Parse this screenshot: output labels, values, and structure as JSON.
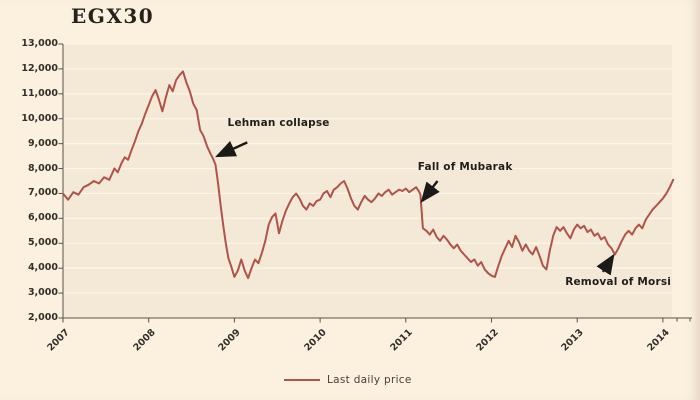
{
  "title": "EGX30",
  "legend": {
    "label": "Last daily price"
  },
  "chart_data": {
    "type": "line",
    "title": "EGX30",
    "xlabel": "",
    "ylabel": "",
    "xlim": [
      2007,
      2014.106
    ],
    "ylim": [
      2000,
      13000
    ],
    "grid": "horizontal",
    "legend_position": "bottom-center",
    "line_color": "#b0544a",
    "background_color": "#fcf0df",
    "plot_background_color": "#f4e9d7",
    "y_ticks": [
      {
        "value": 13000,
        "label": "13,000"
      },
      {
        "value": 12000,
        "label": "12,000"
      },
      {
        "value": 11000,
        "label": "11,000"
      },
      {
        "value": 10000,
        "label": "10,000"
      },
      {
        "value": 9000,
        "label": "9,000"
      },
      {
        "value": 8000,
        "label": "8,000"
      },
      {
        "value": 7000,
        "label": "7,000"
      },
      {
        "value": 6000,
        "label": "6,000"
      },
      {
        "value": 5000,
        "label": "5,000"
      },
      {
        "value": 4000,
        "label": "4,000"
      },
      {
        "value": 3000,
        "label": "3,000"
      },
      {
        "value": 2000,
        "label": "2,000"
      }
    ],
    "x_ticks": [
      {
        "value": 2007,
        "label": "2007"
      },
      {
        "value": 2008,
        "label": "2008"
      },
      {
        "value": 2009,
        "label": "2009"
      },
      {
        "value": 2010,
        "label": "2010"
      },
      {
        "value": 2011,
        "label": "2011"
      },
      {
        "value": 2012,
        "label": "2012"
      },
      {
        "value": 2013,
        "label": "2013"
      },
      {
        "value": 2014,
        "label": "2014"
      }
    ],
    "annotations": [
      {
        "label": "Lehman collapse",
        "tip": [
          2008.8,
          8500
        ],
        "tail": [
          2009.15,
          9050
        ],
        "text_pos": [
          2008.92,
          10050
        ]
      },
      {
        "label": "Fall of Mubarak",
        "tip": [
          2011.19,
          6700
        ],
        "tail": [
          2011.37,
          7500
        ],
        "text_pos": [
          2011.14,
          8300
        ]
      },
      {
        "label": "Removal of Morsi",
        "tip": [
          2013.42,
          4500
        ],
        "tail": [
          2013.3,
          3850
        ],
        "text_pos": [
          2012.86,
          3700
        ]
      }
    ],
    "series": [
      {
        "name": "Last daily price",
        "points": [
          [
            2007.0,
            7000
          ],
          [
            2007.06,
            6750
          ],
          [
            2007.12,
            7050
          ],
          [
            2007.18,
            6950
          ],
          [
            2007.24,
            7250
          ],
          [
            2007.3,
            7350
          ],
          [
            2007.36,
            7500
          ],
          [
            2007.42,
            7400
          ],
          [
            2007.48,
            7650
          ],
          [
            2007.54,
            7550
          ],
          [
            2007.6,
            8000
          ],
          [
            2007.64,
            7850
          ],
          [
            2007.68,
            8200
          ],
          [
            2007.72,
            8450
          ],
          [
            2007.76,
            8350
          ],
          [
            2007.8,
            8750
          ],
          [
            2007.84,
            9100
          ],
          [
            2007.88,
            9500
          ],
          [
            2007.92,
            9800
          ],
          [
            2007.96,
            10200
          ],
          [
            2008.0,
            10550
          ],
          [
            2008.04,
            10900
          ],
          [
            2008.08,
            11150
          ],
          [
            2008.12,
            10750
          ],
          [
            2008.16,
            10300
          ],
          [
            2008.2,
            10850
          ],
          [
            2008.24,
            11350
          ],
          [
            2008.28,
            11100
          ],
          [
            2008.32,
            11550
          ],
          [
            2008.36,
            11750
          ],
          [
            2008.4,
            11900
          ],
          [
            2008.44,
            11450
          ],
          [
            2008.48,
            11100
          ],
          [
            2008.52,
            10600
          ],
          [
            2008.56,
            10350
          ],
          [
            2008.6,
            9550
          ],
          [
            2008.64,
            9300
          ],
          [
            2008.68,
            8900
          ],
          [
            2008.72,
            8600
          ],
          [
            2008.75,
            8400
          ],
          [
            2008.78,
            8150
          ],
          [
            2008.81,
            7400
          ],
          [
            2008.84,
            6500
          ],
          [
            2008.87,
            5700
          ],
          [
            2008.9,
            5000
          ],
          [
            2008.93,
            4400
          ],
          [
            2008.96,
            4100
          ],
          [
            2009.0,
            3650
          ],
          [
            2009.04,
            3900
          ],
          [
            2009.08,
            4350
          ],
          [
            2009.12,
            3900
          ],
          [
            2009.16,
            3600
          ],
          [
            2009.2,
            4000
          ],
          [
            2009.24,
            4350
          ],
          [
            2009.28,
            4200
          ],
          [
            2009.32,
            4600
          ],
          [
            2009.36,
            5100
          ],
          [
            2009.4,
            5750
          ],
          [
            2009.44,
            6050
          ],
          [
            2009.48,
            6200
          ],
          [
            2009.52,
            5400
          ],
          [
            2009.56,
            5900
          ],
          [
            2009.6,
            6300
          ],
          [
            2009.64,
            6600
          ],
          [
            2009.68,
            6850
          ],
          [
            2009.72,
            7000
          ],
          [
            2009.76,
            6800
          ],
          [
            2009.8,
            6500
          ],
          [
            2009.84,
            6350
          ],
          [
            2009.88,
            6600
          ],
          [
            2009.92,
            6500
          ],
          [
            2009.96,
            6700
          ],
          [
            2010.0,
            6750
          ],
          [
            2010.04,
            7000
          ],
          [
            2010.08,
            7100
          ],
          [
            2010.12,
            6850
          ],
          [
            2010.16,
            7150
          ],
          [
            2010.2,
            7250
          ],
          [
            2010.24,
            7400
          ],
          [
            2010.28,
            7500
          ],
          [
            2010.32,
            7200
          ],
          [
            2010.36,
            6800
          ],
          [
            2010.4,
            6500
          ],
          [
            2010.44,
            6350
          ],
          [
            2010.48,
            6650
          ],
          [
            2010.52,
            6900
          ],
          [
            2010.56,
            6750
          ],
          [
            2010.6,
            6650
          ],
          [
            2010.64,
            6800
          ],
          [
            2010.68,
            7000
          ],
          [
            2010.72,
            6900
          ],
          [
            2010.76,
            7050
          ],
          [
            2010.8,
            7150
          ],
          [
            2010.84,
            6950
          ],
          [
            2010.88,
            7050
          ],
          [
            2010.92,
            7150
          ],
          [
            2010.96,
            7100
          ],
          [
            2011.0,
            7200
          ],
          [
            2011.04,
            7050
          ],
          [
            2011.08,
            7150
          ],
          [
            2011.12,
            7250
          ],
          [
            2011.15,
            7100
          ],
          [
            2011.17,
            6950
          ],
          [
            2011.2,
            5600
          ],
          [
            2011.24,
            5500
          ],
          [
            2011.28,
            5350
          ],
          [
            2011.32,
            5550
          ],
          [
            2011.36,
            5250
          ],
          [
            2011.4,
            5100
          ],
          [
            2011.44,
            5300
          ],
          [
            2011.48,
            5150
          ],
          [
            2011.52,
            4950
          ],
          [
            2011.56,
            4800
          ],
          [
            2011.6,
            4950
          ],
          [
            2011.64,
            4700
          ],
          [
            2011.68,
            4550
          ],
          [
            2011.72,
            4400
          ],
          [
            2011.76,
            4250
          ],
          [
            2011.8,
            4350
          ],
          [
            2011.84,
            4100
          ],
          [
            2011.88,
            4250
          ],
          [
            2011.92,
            3950
          ],
          [
            2011.96,
            3800
          ],
          [
            2012.0,
            3700
          ],
          [
            2012.04,
            3650
          ],
          [
            2012.08,
            4100
          ],
          [
            2012.12,
            4500
          ],
          [
            2012.16,
            4800
          ],
          [
            2012.2,
            5100
          ],
          [
            2012.24,
            4850
          ],
          [
            2012.28,
            5300
          ],
          [
            2012.32,
            5050
          ],
          [
            2012.36,
            4700
          ],
          [
            2012.4,
            4950
          ],
          [
            2012.44,
            4700
          ],
          [
            2012.48,
            4550
          ],
          [
            2012.52,
            4850
          ],
          [
            2012.56,
            4500
          ],
          [
            2012.6,
            4100
          ],
          [
            2012.64,
            3950
          ],
          [
            2012.68,
            4700
          ],
          [
            2012.72,
            5300
          ],
          [
            2012.76,
            5650
          ],
          [
            2012.8,
            5500
          ],
          [
            2012.84,
            5650
          ],
          [
            2012.88,
            5400
          ],
          [
            2012.92,
            5200
          ],
          [
            2012.96,
            5550
          ],
          [
            2013.0,
            5750
          ],
          [
            2013.04,
            5600
          ],
          [
            2013.08,
            5700
          ],
          [
            2013.12,
            5450
          ],
          [
            2013.16,
            5550
          ],
          [
            2013.2,
            5300
          ],
          [
            2013.24,
            5400
          ],
          [
            2013.28,
            5150
          ],
          [
            2013.32,
            5250
          ],
          [
            2013.36,
            4950
          ],
          [
            2013.4,
            4800
          ],
          [
            2013.44,
            4550
          ],
          [
            2013.48,
            4800
          ],
          [
            2013.52,
            5100
          ],
          [
            2013.56,
            5350
          ],
          [
            2013.6,
            5500
          ],
          [
            2013.64,
            5350
          ],
          [
            2013.68,
            5600
          ],
          [
            2013.72,
            5750
          ],
          [
            2013.76,
            5600
          ],
          [
            2013.8,
            5950
          ],
          [
            2013.84,
            6150
          ],
          [
            2013.88,
            6350
          ],
          [
            2013.92,
            6500
          ],
          [
            2013.96,
            6650
          ],
          [
            2014.0,
            6800
          ],
          [
            2014.04,
            7000
          ],
          [
            2014.08,
            7250
          ],
          [
            2014.12,
            7550
          ]
        ]
      }
    ]
  }
}
